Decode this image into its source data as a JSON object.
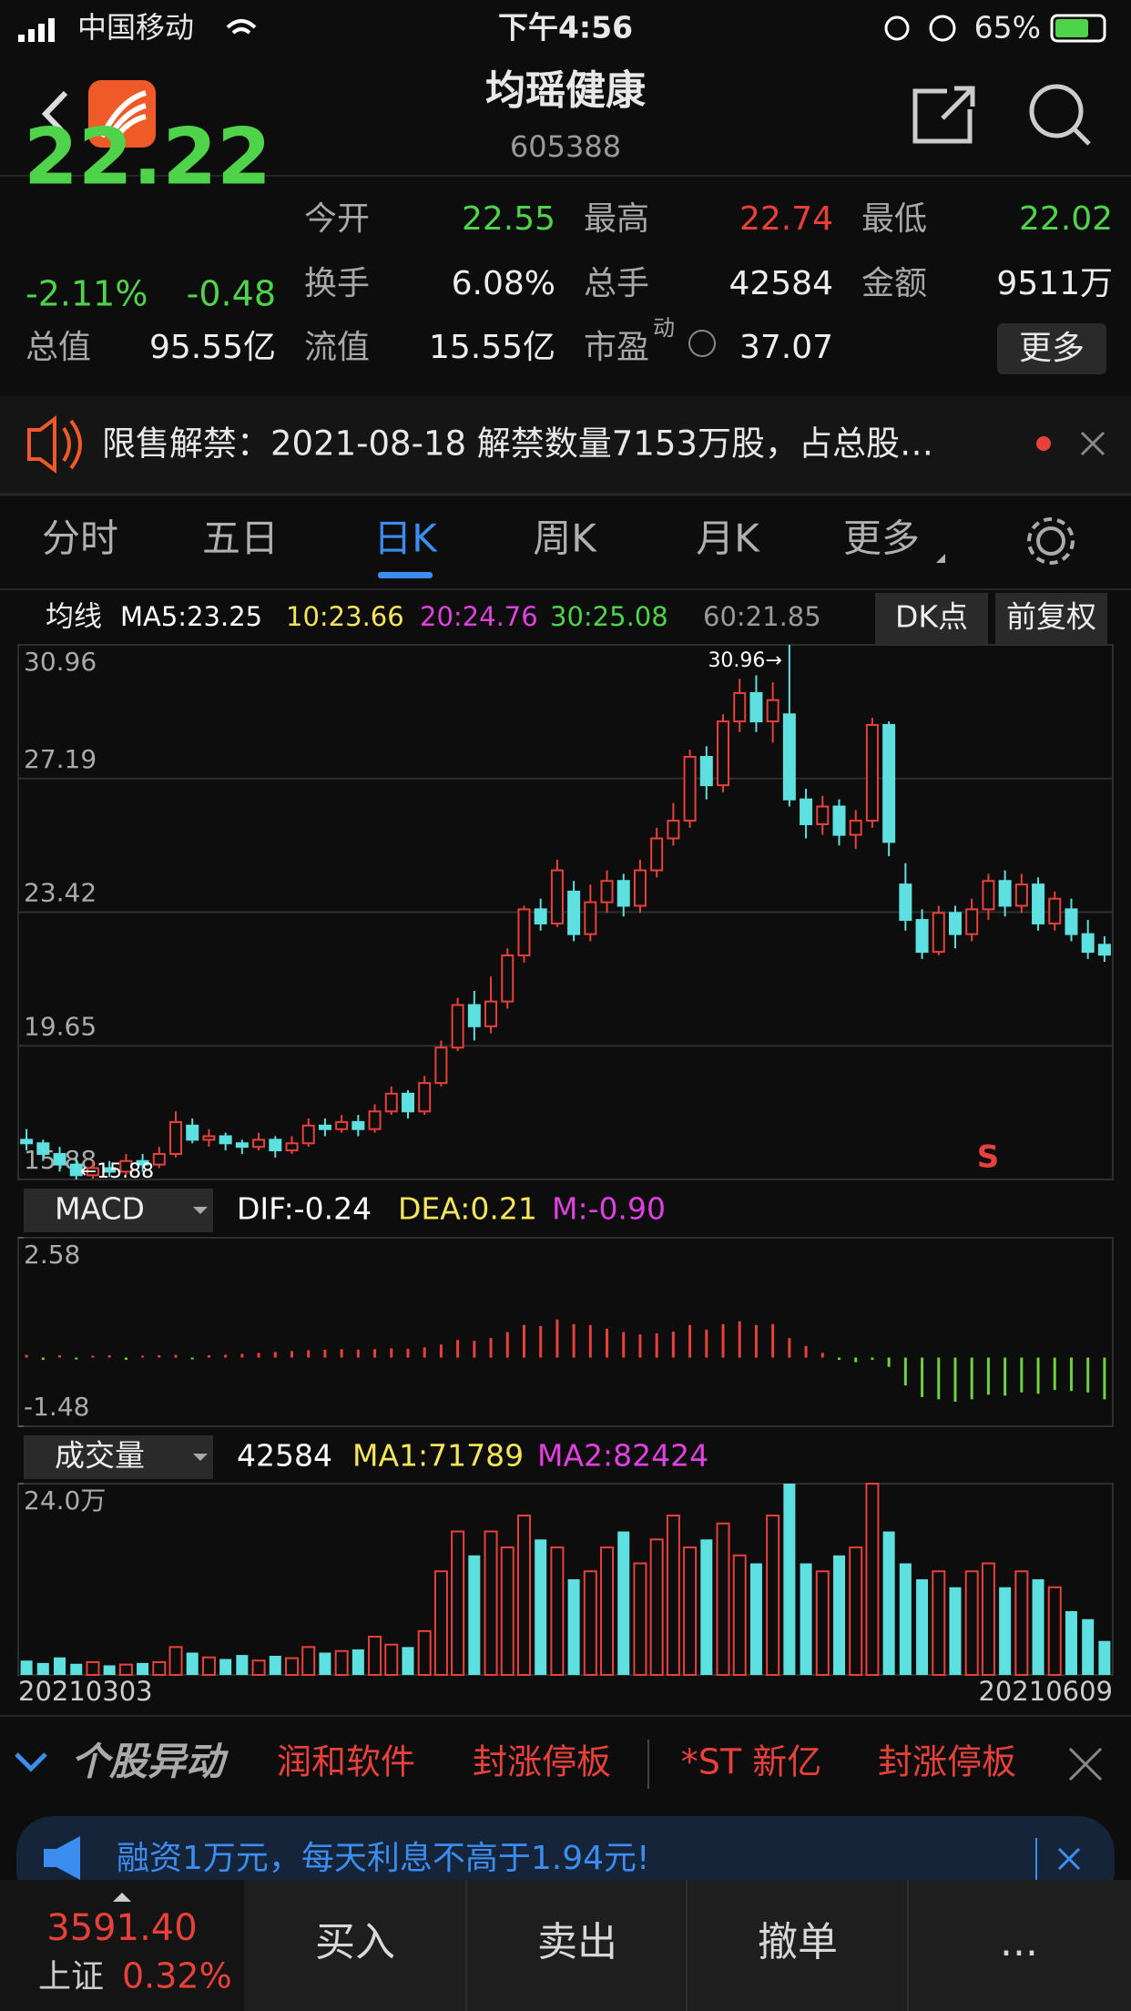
{
  "status": {
    "carrier": "中国移动",
    "time": "下午4:56",
    "battery": "65%"
  },
  "header": {
    "title": "均瑶健康",
    "code": "605388"
  },
  "quote": {
    "price": "22.22",
    "change_pct": "-2.11%",
    "change": "-0.48",
    "color": "#4fd34a",
    "stats": [
      {
        "label": "今开",
        "value": "22.55",
        "color": "#4fd34a"
      },
      {
        "label": "最高",
        "value": "22.74",
        "color": "#e8413b"
      },
      {
        "label": "最低",
        "value": "22.02",
        "color": "#4fd34a"
      },
      {
        "label": "换手",
        "value": "6.08%"
      },
      {
        "label": "总手",
        "value": "42584"
      },
      {
        "label": "金额",
        "value": "9511万"
      },
      {
        "label": "总值",
        "value": "95.55亿"
      },
      {
        "label": "流值",
        "value": "15.55亿"
      },
      {
        "label": "市盈",
        "superscript": "动",
        "value": "37.07"
      }
    ],
    "more": "更多"
  },
  "notice": "限售解禁：2021-08-18 解禁数量7153万股，占总股…",
  "tabs": {
    "items": [
      "分时",
      "五日",
      "日K",
      "周K",
      "月K",
      "更多"
    ],
    "active": 2
  },
  "ma_legend": {
    "title": "均线",
    "items": [
      {
        "text": "MA5:23.25",
        "color": "#ffffff"
      },
      {
        "text": "10:23.66",
        "color": "#f5e55a"
      },
      {
        "text": "20:24.76",
        "color": "#e040e0"
      },
      {
        "text": "30:25.08",
        "color": "#4fd34a"
      },
      {
        "text": "60:21.85",
        "color": "#9a9a9a"
      }
    ],
    "buttons": [
      "DK点",
      "前复权"
    ]
  },
  "chart_data": [
    {
      "type": "candlestick",
      "up_color": "#e8413b",
      "down_color": "#5ee0e0",
      "ylim": [
        15.88,
        30.96
      ],
      "yticks": [
        15.88,
        19.65,
        23.42,
        27.19,
        30.96
      ],
      "grid": true,
      "high_label": "30.96→",
      "low_label": "←15.88",
      "signal": "S",
      "open": [
        17.0,
        16.9,
        16.6,
        16.3,
        16.0,
        16.2,
        16.1,
        16.4,
        16.3,
        16.6,
        17.4,
        17.0,
        17.1,
        16.9,
        16.8,
        17.0,
        16.7,
        16.9,
        17.4,
        17.3,
        17.5,
        17.3,
        17.8,
        18.3,
        17.8,
        18.6,
        19.6,
        20.8,
        20.2,
        20.9,
        22.2,
        23.5,
        23.1,
        24.0,
        22.8,
        23.7,
        24.3,
        23.6,
        24.6,
        25.5,
        26.0,
        27.8,
        27.0,
        28.8,
        29.6,
        28.8,
        29.0,
        26.6,
        25.9,
        26.4,
        25.6,
        26.0,
        28.7,
        24.2,
        23.2,
        22.3,
        23.4,
        22.8,
        23.5,
        24.3,
        23.6,
        24.2,
        23.1,
        23.5,
        22.8,
        22.5
      ],
      "high": [
        17.3,
        17.0,
        16.8,
        16.5,
        16.4,
        16.4,
        16.6,
        16.6,
        16.8,
        17.8,
        17.6,
        17.3,
        17.2,
        17.0,
        17.2,
        17.1,
        17.1,
        17.6,
        17.6,
        17.7,
        17.7,
        18.0,
        18.5,
        18.4,
        18.8,
        19.8,
        21.0,
        21.2,
        21.6,
        22.4,
        23.6,
        23.8,
        24.9,
        24.3,
        24.2,
        24.6,
        24.5,
        24.9,
        25.8,
        26.5,
        28.0,
        28.1,
        29.0,
        30.0,
        30.1,
        29.9,
        30.96,
        26.9,
        26.7,
        26.6,
        26.3,
        28.9,
        28.8,
        24.8,
        23.5,
        23.6,
        23.6,
        23.8,
        24.5,
        24.6,
        24.5,
        24.4,
        24.0,
        23.8,
        23.2,
        22.74
      ],
      "low": [
        16.7,
        16.4,
        16.1,
        15.88,
        15.9,
        15.95,
        16.0,
        16.1,
        16.2,
        16.5,
        16.9,
        16.8,
        16.7,
        16.6,
        16.7,
        16.5,
        16.6,
        16.8,
        17.1,
        17.2,
        17.1,
        17.2,
        17.7,
        17.6,
        17.7,
        18.5,
        19.5,
        19.8,
        20.0,
        20.7,
        22.0,
        22.9,
        23.0,
        22.6,
        22.6,
        23.4,
        23.3,
        23.4,
        24.4,
        25.3,
        25.8,
        26.6,
        26.8,
        28.5,
        28.5,
        28.2,
        26.4,
        25.5,
        25.6,
        25.3,
        25.2,
        25.8,
        25.0,
        22.9,
        22.1,
        22.2,
        22.4,
        22.6,
        23.2,
        23.3,
        23.4,
        22.9,
        22.9,
        22.6,
        22.1,
        22.02
      ],
      "close": [
        16.9,
        16.6,
        16.3,
        16.0,
        16.2,
        16.1,
        16.4,
        16.3,
        16.6,
        17.5,
        17.0,
        17.1,
        16.9,
        16.8,
        17.0,
        16.7,
        16.9,
        17.4,
        17.3,
        17.5,
        17.3,
        17.8,
        18.3,
        17.8,
        18.6,
        19.6,
        20.8,
        20.2,
        20.9,
        22.2,
        23.5,
        23.1,
        24.6,
        22.8,
        23.7,
        24.3,
        23.6,
        24.6,
        25.5,
        26.0,
        27.8,
        27.0,
        28.8,
        29.6,
        28.8,
        29.4,
        26.6,
        25.9,
        26.4,
        25.6,
        26.0,
        28.7,
        25.4,
        23.2,
        22.3,
        23.4,
        22.8,
        23.5,
        24.3,
        23.6,
        24.2,
        23.1,
        23.8,
        22.8,
        22.3,
        22.22
      ]
    },
    {
      "type": "bar",
      "indicator": "MACD",
      "legend": [
        {
          "text": "DIF:-0.24",
          "color": "#ffffff"
        },
        {
          "text": "DEA:0.21",
          "color": "#f5e55a"
        },
        {
          "text": "M:-0.90",
          "color": "#e040e0"
        }
      ],
      "pos_color": "#e8413b",
      "neg_color": "#6fd13f",
      "ylim": [
        -1.48,
        2.58
      ],
      "yticks": [
        -1.48,
        2.58
      ],
      "values": [
        0.06,
        -0.05,
        0.05,
        -0.04,
        0.04,
        0.05,
        -0.05,
        0.04,
        0.05,
        0.06,
        -0.04,
        0.05,
        0.06,
        0.08,
        0.1,
        0.12,
        0.14,
        0.16,
        0.17,
        0.18,
        0.17,
        0.18,
        0.2,
        0.19,
        0.22,
        0.28,
        0.38,
        0.36,
        0.42,
        0.55,
        0.7,
        0.68,
        0.82,
        0.72,
        0.7,
        0.62,
        0.55,
        0.5,
        0.52,
        0.56,
        0.7,
        0.6,
        0.72,
        0.78,
        0.7,
        0.72,
        0.42,
        0.25,
        0.1,
        -0.05,
        -0.1,
        -0.05,
        -0.2,
        -0.6,
        -0.85,
        -0.9,
        -0.95,
        -0.9,
        -0.8,
        -0.82,
        -0.75,
        -0.78,
        -0.7,
        -0.72,
        -0.75,
        -0.9
      ]
    },
    {
      "type": "bar",
      "indicator": "成交量",
      "legend": [
        {
          "text": "42584",
          "color": "#ffffff"
        },
        {
          "text": "MA1:71789",
          "color": "#f5e55a"
        },
        {
          "text": "MA2:82424",
          "color": "#e040e0"
        }
      ],
      "ylim": [
        0,
        24
      ],
      "yticks": [
        {
          "value": 24,
          "label": "24.0万"
        }
      ],
      "start_date": "20210303",
      "end_date": "20210609",
      "values": [
        1.8,
        1.5,
        2.2,
        1.4,
        1.6,
        1.2,
        1.3,
        1.5,
        1.6,
        3.5,
        2.8,
        2.2,
        2.0,
        2.5,
        1.8,
        2.4,
        2.1,
        3.5,
        2.8,
        3.0,
        3.2,
        4.8,
        3.8,
        3.5,
        5.5,
        13,
        18,
        15,
        18,
        16,
        20,
        17,
        16,
        12,
        13,
        16,
        18,
        14,
        17,
        20,
        16,
        17,
        19,
        15,
        14,
        20,
        24,
        14,
        13,
        15,
        16,
        24,
        18,
        14,
        12,
        13,
        11,
        13,
        14,
        11,
        13,
        12,
        11,
        8,
        7,
        4.26
      ]
    }
  ],
  "ticker": {
    "title": "个股异动",
    "items": [
      "润和软件",
      "封涨停板",
      "*ST 新亿",
      "封涨停板"
    ]
  },
  "ad": "融资1万元，每天利息不高于1.94元!",
  "bottom": {
    "index_value": "3591.40",
    "index_name": "上证",
    "index_change": "0.32%",
    "buttons": [
      "买入",
      "卖出",
      "撤单",
      "..."
    ]
  }
}
